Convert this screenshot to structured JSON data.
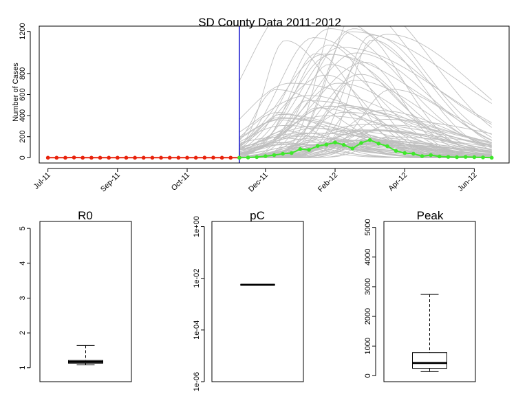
{
  "chart_data": [
    {
      "type": "line",
      "title": "SD County Data 2011-2012",
      "ylabel": "Number of Cases",
      "xlabel": "",
      "ylim": [
        -50,
        1250
      ],
      "yticks": [
        0,
        200,
        400,
        600,
        800,
        1200
      ],
      "xticks": [
        "Jul-11",
        "Sep-11",
        "Oct-11",
        "Dec-11",
        "Feb-12",
        "Apr-12",
        "Jun-12"
      ],
      "xtick_weeks": [
        0,
        8,
        16,
        25,
        33,
        41,
        49
      ],
      "week_range": [
        -1,
        53
      ],
      "cutoff_week": 22,
      "cutoff_color": "#1f1fd0",
      "observed": {
        "color": "#e8230c",
        "weeks": [
          0,
          1,
          2,
          3,
          4,
          5,
          6,
          7,
          8,
          9,
          10,
          11,
          12,
          13,
          14,
          15,
          16,
          17,
          18,
          19,
          20,
          21,
          22
        ],
        "values": [
          0,
          0,
          0,
          2,
          0,
          0,
          0,
          0,
          0,
          0,
          0,
          0,
          0,
          0,
          0,
          0,
          0,
          0,
          1,
          1,
          0,
          0,
          1
        ]
      },
      "validation": {
        "color": "#3ee82a",
        "weeks": [
          22,
          23,
          24,
          25,
          26,
          27,
          28,
          29,
          30,
          31,
          32,
          33,
          34,
          35,
          36,
          37,
          38,
          39,
          40,
          41,
          42,
          43,
          44,
          45,
          46,
          47,
          48,
          49,
          50,
          51
        ],
        "values": [
          0,
          2,
          6,
          15,
          25,
          38,
          45,
          82,
          75,
          112,
          125,
          145,
          122,
          88,
          140,
          168,
          135,
          110,
          65,
          45,
          38,
          15,
          25,
          12,
          8,
          5,
          8,
          5,
          3,
          0
        ]
      },
      "simulations": {
        "color": "#bfbfbf",
        "count": 90,
        "peak_week_range": [
          26,
          40
        ],
        "peak_range": [
          120,
          1250
        ]
      }
    },
    {
      "type": "box",
      "title": "R0",
      "yticks": [
        "1",
        "2",
        "3",
        "4",
        "5"
      ],
      "ylim": [
        0.6,
        5.2
      ],
      "stats": {
        "min": 1.08,
        "q1": 1.13,
        "median": 1.17,
        "q3": 1.21,
        "max": 1.64
      }
    },
    {
      "type": "box",
      "title": "pC",
      "log_scale": true,
      "yticks": [
        "1e+00",
        "1e-02",
        "1e-04",
        "1e-06"
      ],
      "ylim_exp": [
        -6.0,
        0.2
      ],
      "stats_exp": {
        "min": -2.25,
        "q1": -2.25,
        "median": -2.25,
        "q3": -2.25,
        "max": -2.25
      }
    },
    {
      "type": "box",
      "title": "Peak",
      "yticks": [
        "0",
        "1000",
        "2000",
        "3000",
        "4000",
        "5000"
      ],
      "ylim": [
        -200,
        5200
      ],
      "stats": {
        "min": 140,
        "q1": 250,
        "median": 430,
        "q3": 780,
        "max": 2740
      }
    }
  ]
}
